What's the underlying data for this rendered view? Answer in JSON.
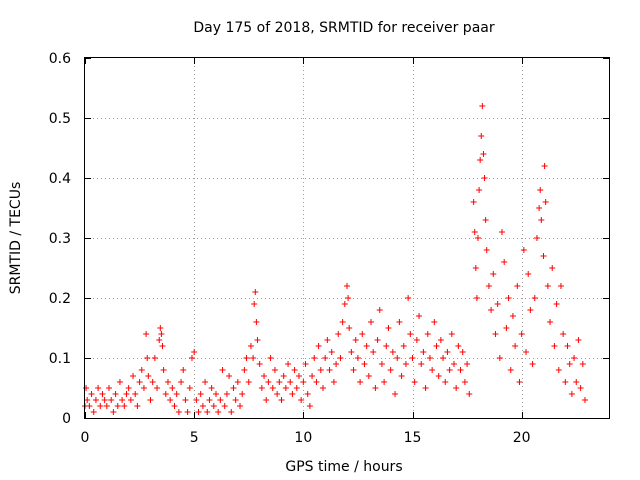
{
  "chart_data": {
    "type": "scatter",
    "title": "Day 175 of 2018, SRMTID for receiver paar",
    "xlabel": "GPS time / hours",
    "ylabel": "SRMTID / TECUs",
    "xlim": [
      0,
      24
    ],
    "ylim": [
      0,
      0.6
    ],
    "xticks": [
      0,
      5,
      10,
      15,
      20
    ],
    "yticks": [
      0,
      0.1,
      0.2,
      0.3,
      0.4,
      0.5,
      0.6
    ],
    "xtick_labels": [
      "0",
      "5",
      "10",
      "15",
      "20"
    ],
    "ytick_labels": [
      "0",
      "0.1",
      "0.2",
      "0.3",
      "0.4",
      "0.5",
      "0.6"
    ],
    "grid": true,
    "marker": "+",
    "marker_color": "#ff0000",
    "series": [
      {
        "name": "SRMTID",
        "points": [
          [
            0.0,
            0.02
          ],
          [
            0.05,
            0.05
          ],
          [
            0.1,
            0.03
          ],
          [
            0.2,
            0.02
          ],
          [
            0.3,
            0.04
          ],
          [
            0.4,
            0.01
          ],
          [
            0.5,
            0.03
          ],
          [
            0.6,
            0.05
          ],
          [
            0.7,
            0.02
          ],
          [
            0.8,
            0.04
          ],
          [
            0.9,
            0.03
          ],
          [
            1.0,
            0.02
          ],
          [
            1.1,
            0.05
          ],
          [
            1.2,
            0.03
          ],
          [
            1.3,
            0.01
          ],
          [
            1.4,
            0.04
          ],
          [
            1.5,
            0.02
          ],
          [
            1.6,
            0.06
          ],
          [
            1.7,
            0.03
          ],
          [
            1.8,
            0.02
          ],
          [
            1.9,
            0.04
          ],
          [
            2.0,
            0.05
          ],
          [
            2.1,
            0.03
          ],
          [
            2.2,
            0.07
          ],
          [
            2.3,
            0.04
          ],
          [
            2.4,
            0.02
          ],
          [
            2.5,
            0.06
          ],
          [
            2.6,
            0.08
          ],
          [
            2.7,
            0.05
          ],
          [
            2.8,
            0.14
          ],
          [
            2.85,
            0.1
          ],
          [
            2.9,
            0.07
          ],
          [
            3.0,
            0.03
          ],
          [
            3.1,
            0.06
          ],
          [
            3.2,
            0.1
          ],
          [
            3.3,
            0.05
          ],
          [
            3.4,
            0.13
          ],
          [
            3.45,
            0.15
          ],
          [
            3.5,
            0.14
          ],
          [
            3.55,
            0.12
          ],
          [
            3.6,
            0.08
          ],
          [
            3.7,
            0.04
          ],
          [
            3.8,
            0.06
          ],
          [
            3.9,
            0.03
          ],
          [
            4.0,
            0.05
          ],
          [
            4.1,
            0.02
          ],
          [
            4.2,
            0.04
          ],
          [
            4.3,
            0.01
          ],
          [
            4.4,
            0.06
          ],
          [
            4.5,
            0.08
          ],
          [
            4.6,
            0.03
          ],
          [
            4.7,
            0.01
          ],
          [
            4.8,
            0.05
          ],
          [
            4.9,
            0.1
          ],
          [
            5.0,
            0.11
          ],
          [
            5.1,
            0.03
          ],
          [
            5.2,
            0.01
          ],
          [
            5.3,
            0.04
          ],
          [
            5.4,
            0.02
          ],
          [
            5.5,
            0.06
          ],
          [
            5.6,
            0.01
          ],
          [
            5.7,
            0.03
          ],
          [
            5.8,
            0.05
          ],
          [
            5.9,
            0.02
          ],
          [
            6.0,
            0.04
          ],
          [
            6.1,
            0.01
          ],
          [
            6.2,
            0.03
          ],
          [
            6.3,
            0.08
          ],
          [
            6.4,
            0.02
          ],
          [
            6.5,
            0.04
          ],
          [
            6.6,
            0.07
          ],
          [
            6.7,
            0.01
          ],
          [
            6.8,
            0.05
          ],
          [
            6.9,
            0.03
          ],
          [
            7.0,
            0.06
          ],
          [
            7.1,
            0.02
          ],
          [
            7.2,
            0.04
          ],
          [
            7.3,
            0.08
          ],
          [
            7.4,
            0.1
          ],
          [
            7.5,
            0.06
          ],
          [
            7.6,
            0.12
          ],
          [
            7.7,
            0.1
          ],
          [
            7.75,
            0.19
          ],
          [
            7.8,
            0.21
          ],
          [
            7.85,
            0.16
          ],
          [
            7.9,
            0.13
          ],
          [
            8.0,
            0.09
          ],
          [
            8.1,
            0.05
          ],
          [
            8.2,
            0.07
          ],
          [
            8.3,
            0.03
          ],
          [
            8.4,
            0.06
          ],
          [
            8.5,
            0.1
          ],
          [
            8.6,
            0.05
          ],
          [
            8.7,
            0.08
          ],
          [
            8.8,
            0.04
          ],
          [
            8.9,
            0.06
          ],
          [
            9.0,
            0.03
          ],
          [
            9.1,
            0.07
          ],
          [
            9.2,
            0.05
          ],
          [
            9.3,
            0.09
          ],
          [
            9.4,
            0.06
          ],
          [
            9.5,
            0.04
          ],
          [
            9.6,
            0.08
          ],
          [
            9.7,
            0.05
          ],
          [
            9.8,
            0.07
          ],
          [
            9.9,
            0.03
          ],
          [
            10.0,
            0.06
          ],
          [
            10.1,
            0.09
          ],
          [
            10.2,
            0.04
          ],
          [
            10.3,
            0.02
          ],
          [
            10.4,
            0.07
          ],
          [
            10.5,
            0.1
          ],
          [
            10.6,
            0.06
          ],
          [
            10.7,
            0.12
          ],
          [
            10.8,
            0.08
          ],
          [
            10.9,
            0.05
          ],
          [
            11.0,
            0.1
          ],
          [
            11.1,
            0.13
          ],
          [
            11.2,
            0.08
          ],
          [
            11.3,
            0.11
          ],
          [
            11.4,
            0.06
          ],
          [
            11.5,
            0.09
          ],
          [
            11.6,
            0.14
          ],
          [
            11.7,
            0.1
          ],
          [
            11.8,
            0.16
          ],
          [
            11.9,
            0.19
          ],
          [
            12.0,
            0.22
          ],
          [
            12.05,
            0.2
          ],
          [
            12.1,
            0.15
          ],
          [
            12.2,
            0.11
          ],
          [
            12.3,
            0.08
          ],
          [
            12.4,
            0.13
          ],
          [
            12.5,
            0.1
          ],
          [
            12.6,
            0.06
          ],
          [
            12.7,
            0.14
          ],
          [
            12.8,
            0.09
          ],
          [
            12.9,
            0.12
          ],
          [
            13.0,
            0.07
          ],
          [
            13.1,
            0.16
          ],
          [
            13.2,
            0.11
          ],
          [
            13.3,
            0.05
          ],
          [
            13.4,
            0.13
          ],
          [
            13.5,
            0.18
          ],
          [
            13.6,
            0.09
          ],
          [
            13.7,
            0.06
          ],
          [
            13.8,
            0.12
          ],
          [
            13.9,
            0.15
          ],
          [
            14.0,
            0.08
          ],
          [
            14.1,
            0.11
          ],
          [
            14.2,
            0.04
          ],
          [
            14.3,
            0.1
          ],
          [
            14.4,
            0.16
          ],
          [
            14.5,
            0.07
          ],
          [
            14.6,
            0.12
          ],
          [
            14.7,
            0.09
          ],
          [
            14.8,
            0.2
          ],
          [
            14.9,
            0.14
          ],
          [
            15.0,
            0.1
          ],
          [
            15.1,
            0.06
          ],
          [
            15.2,
            0.13
          ],
          [
            15.3,
            0.17
          ],
          [
            15.4,
            0.09
          ],
          [
            15.5,
            0.11
          ],
          [
            15.6,
            0.05
          ],
          [
            15.7,
            0.14
          ],
          [
            15.8,
            0.1
          ],
          [
            15.9,
            0.08
          ],
          [
            16.0,
            0.16
          ],
          [
            16.1,
            0.12
          ],
          [
            16.2,
            0.07
          ],
          [
            16.3,
            0.13
          ],
          [
            16.4,
            0.1
          ],
          [
            16.5,
            0.06
          ],
          [
            16.6,
            0.11
          ],
          [
            16.7,
            0.08
          ],
          [
            16.8,
            0.14
          ],
          [
            16.9,
            0.09
          ],
          [
            17.0,
            0.05
          ],
          [
            17.1,
            0.12
          ],
          [
            17.2,
            0.08
          ],
          [
            17.3,
            0.11
          ],
          [
            17.4,
            0.06
          ],
          [
            17.5,
            0.09
          ],
          [
            17.6,
            0.04
          ],
          [
            17.8,
            0.36
          ],
          [
            17.85,
            0.31
          ],
          [
            17.9,
            0.25
          ],
          [
            17.95,
            0.2
          ],
          [
            18.0,
            0.3
          ],
          [
            18.05,
            0.38
          ],
          [
            18.1,
            0.43
          ],
          [
            18.15,
            0.47
          ],
          [
            18.2,
            0.52
          ],
          [
            18.25,
            0.44
          ],
          [
            18.3,
            0.4
          ],
          [
            18.35,
            0.33
          ],
          [
            18.4,
            0.28
          ],
          [
            18.5,
            0.22
          ],
          [
            18.6,
            0.18
          ],
          [
            18.7,
            0.24
          ],
          [
            18.8,
            0.14
          ],
          [
            18.9,
            0.19
          ],
          [
            19.0,
            0.1
          ],
          [
            19.1,
            0.31
          ],
          [
            19.2,
            0.26
          ],
          [
            19.3,
            0.15
          ],
          [
            19.4,
            0.2
          ],
          [
            19.5,
            0.08
          ],
          [
            19.6,
            0.17
          ],
          [
            19.7,
            0.12
          ],
          [
            19.8,
            0.22
          ],
          [
            19.9,
            0.06
          ],
          [
            20.0,
            0.14
          ],
          [
            20.1,
            0.28
          ],
          [
            20.2,
            0.11
          ],
          [
            20.3,
            0.24
          ],
          [
            20.4,
            0.18
          ],
          [
            20.5,
            0.09
          ],
          [
            20.6,
            0.2
          ],
          [
            20.7,
            0.3
          ],
          [
            20.8,
            0.35
          ],
          [
            20.85,
            0.38
          ],
          [
            20.9,
            0.33
          ],
          [
            21.0,
            0.27
          ],
          [
            21.05,
            0.42
          ],
          [
            21.1,
            0.36
          ],
          [
            21.2,
            0.22
          ],
          [
            21.3,
            0.16
          ],
          [
            21.4,
            0.25
          ],
          [
            21.5,
            0.12
          ],
          [
            21.6,
            0.19
          ],
          [
            21.7,
            0.08
          ],
          [
            21.8,
            0.22
          ],
          [
            21.9,
            0.14
          ],
          [
            22.0,
            0.06
          ],
          [
            22.1,
            0.12
          ],
          [
            22.2,
            0.09
          ],
          [
            22.3,
            0.04
          ],
          [
            22.4,
            0.1
          ],
          [
            22.5,
            0.06
          ],
          [
            22.6,
            0.13
          ],
          [
            22.7,
            0.05
          ],
          [
            22.8,
            0.09
          ],
          [
            22.9,
            0.03
          ]
        ]
      }
    ]
  }
}
